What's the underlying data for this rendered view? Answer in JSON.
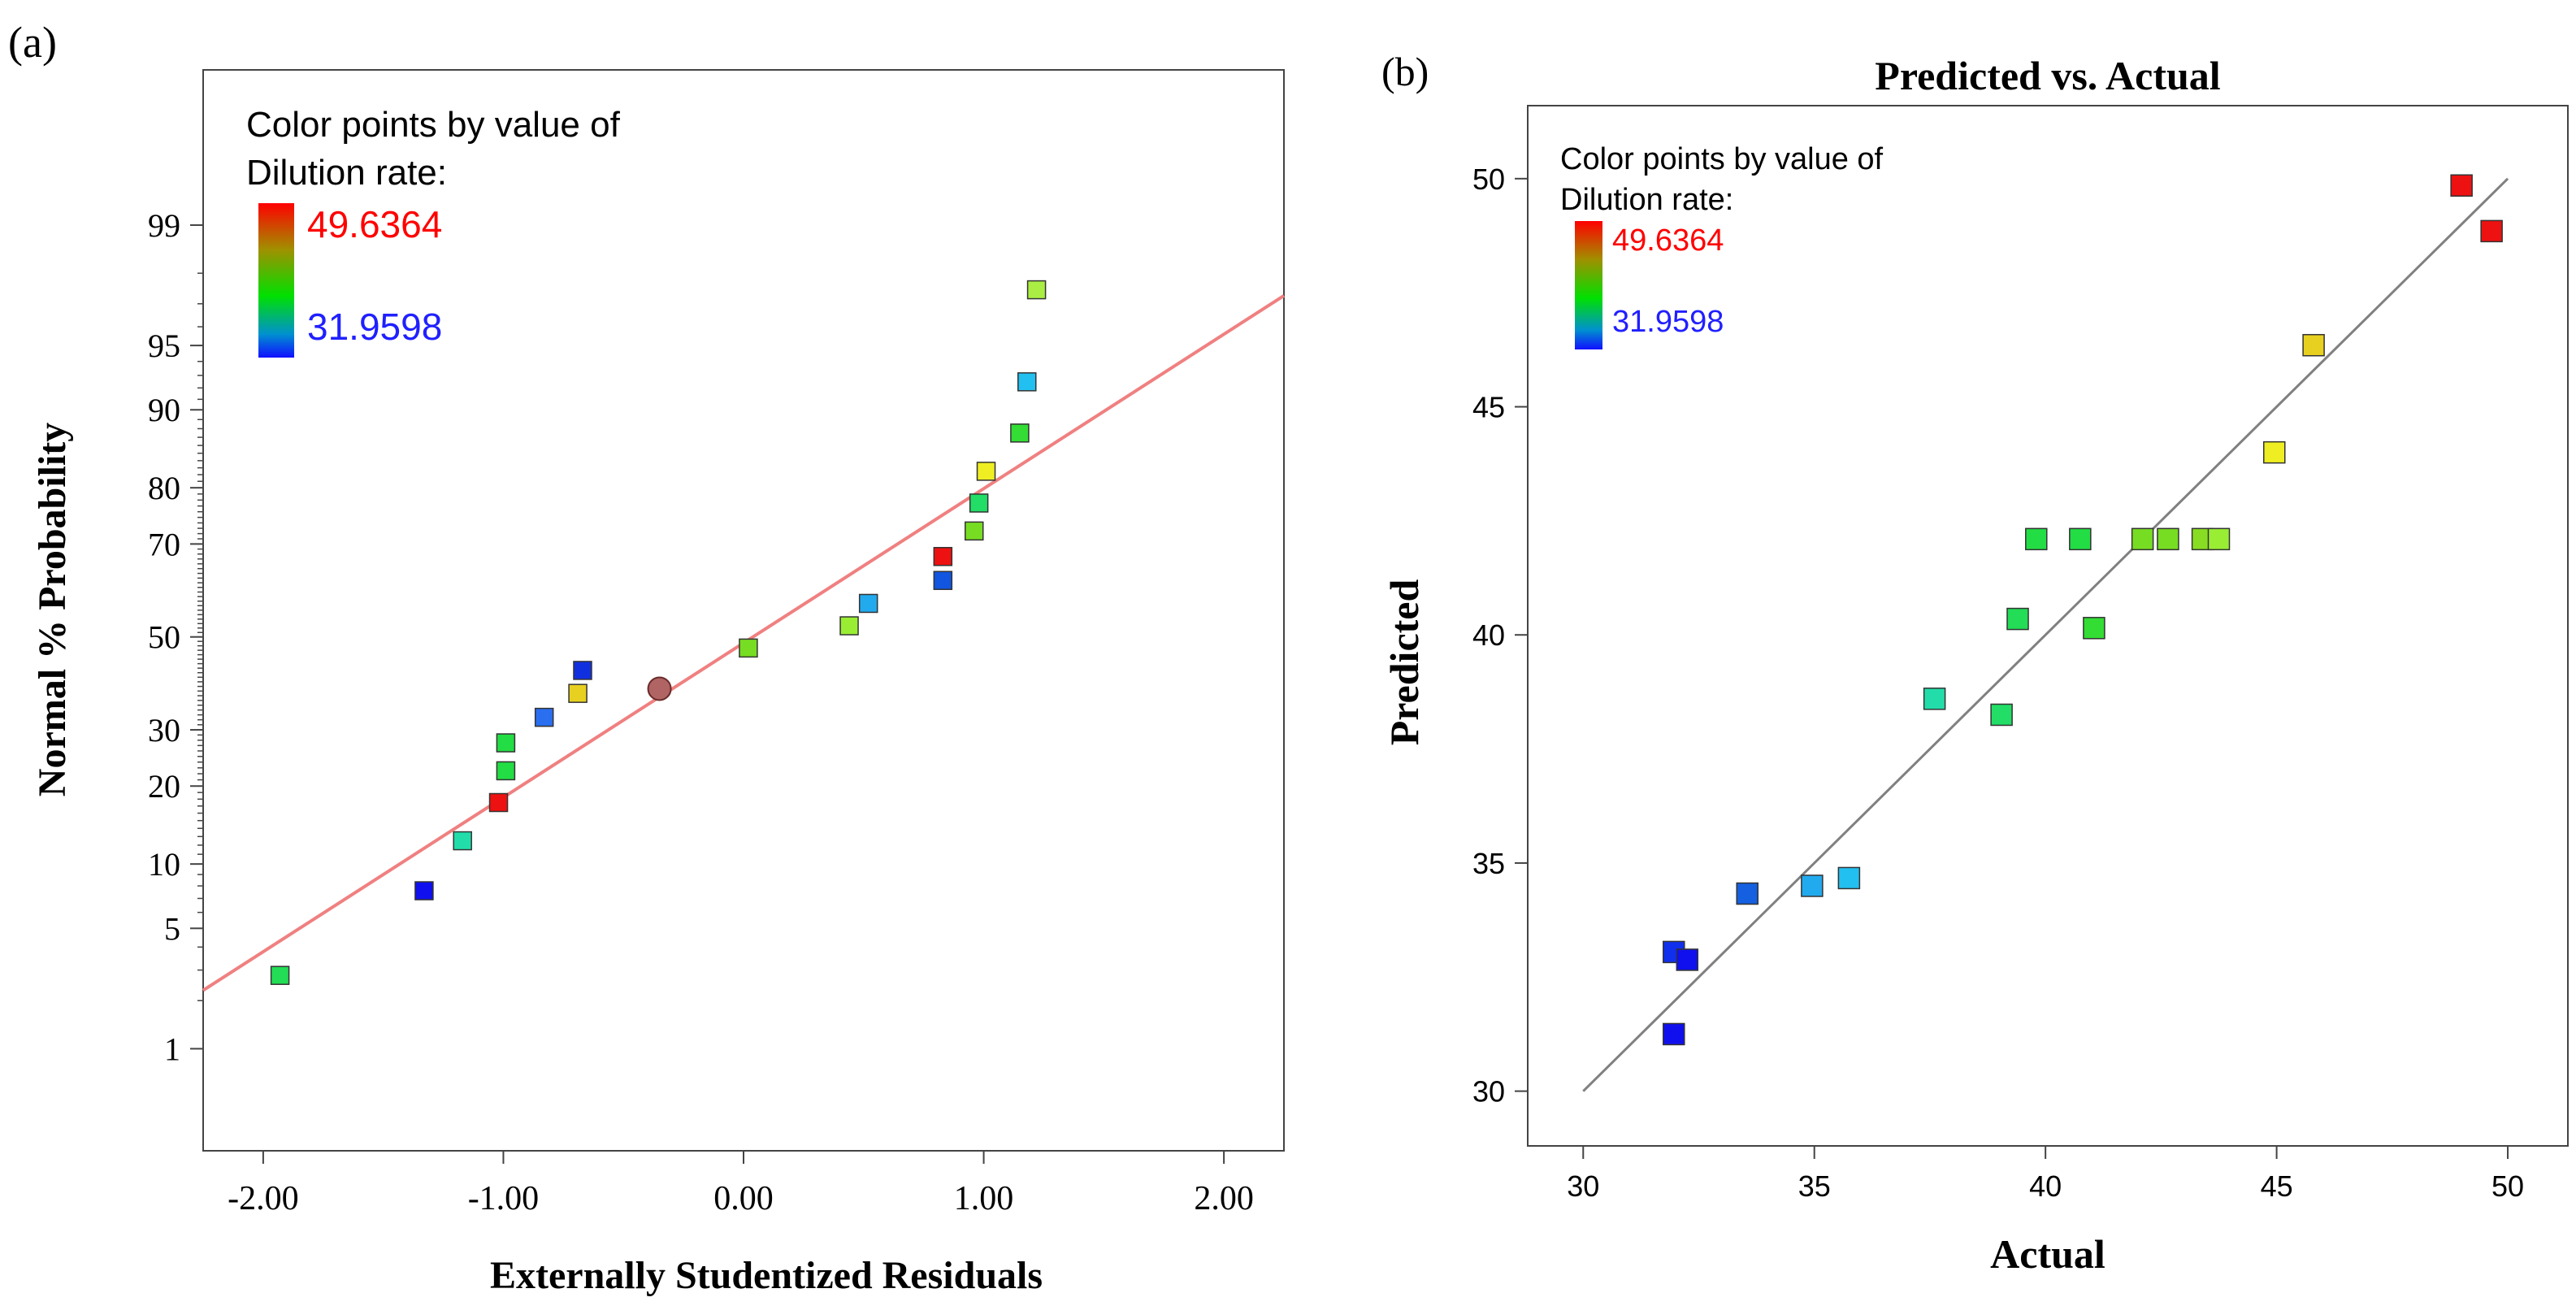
{
  "chart_data": [
    {
      "panel_label": "(a)",
      "type": "scatter",
      "title": "",
      "xlabel": "Externally Studentized Residuals",
      "ylabel": "Normal % Probability",
      "xlim": [
        -2.25,
        2.25
      ],
      "ylim_z": [
        -2.9,
        3.2
      ],
      "y_scale": "normal-probability",
      "xticks": [
        -2.0,
        -1.0,
        0.0,
        1.0,
        2.0
      ],
      "xtick_labels": [
        "-2.00",
        "-1.00",
        "0.00",
        "1.00",
        "2.00"
      ],
      "yticks": [
        1,
        5,
        10,
        20,
        30,
        50,
        70,
        80,
        90,
        95,
        99
      ],
      "ytick_labels": [
        "1",
        "5",
        "10",
        "20",
        "30",
        "50",
        "70",
        "80",
        "90",
        "95",
        "99"
      ],
      "legend": {
        "title_line1": "Color points by value of",
        "title_line2": "Dilution rate:",
        "max_label": "49.6364",
        "min_label": "31.9598",
        "max_color": "#ff0000",
        "min_color": "#2020ff"
      },
      "reference_line": {
        "color": "#f08080",
        "x": [
          -2.25,
          2.25
        ],
        "p": [
          2.3,
          97.3
        ]
      },
      "highlight_point": {
        "x": -0.35,
        "p": 38.5,
        "color": "#b06464"
      },
      "points": [
        {
          "x": -1.93,
          "p": 2.8,
          "color": "#22dd55"
        },
        {
          "x": -1.33,
          "p": 7.6,
          "color": "#1010ee"
        },
        {
          "x": -1.17,
          "p": 12.5,
          "color": "#22ddaa"
        },
        {
          "x": -1.02,
          "p": 17.5,
          "color": "#ee1111"
        },
        {
          "x": -0.99,
          "p": 22.5,
          "color": "#22dd44"
        },
        {
          "x": -0.99,
          "p": 27.5,
          "color": "#22dd44"
        },
        {
          "x": -0.83,
          "p": 32.5,
          "color": "#2a6ff0"
        },
        {
          "x": -0.69,
          "p": 37.5,
          "color": "#e8d020"
        },
        {
          "x": -0.67,
          "p": 42.5,
          "color": "#1030e0"
        },
        {
          "x": 0.02,
          "p": 47.5,
          "color": "#77dd22"
        },
        {
          "x": 0.44,
          "p": 52.5,
          "color": "#99ee33"
        },
        {
          "x": 0.52,
          "p": 57.5,
          "color": "#22aaee"
        },
        {
          "x": 0.83,
          "p": 62.5,
          "color": "#1155e0"
        },
        {
          "x": 0.83,
          "p": 67.5,
          "color": "#ee1111"
        },
        {
          "x": 0.96,
          "p": 72.5,
          "color": "#77dd22"
        },
        {
          "x": 0.98,
          "p": 77.5,
          "color": "#22dd66"
        },
        {
          "x": 1.01,
          "p": 82.5,
          "color": "#eeee22"
        },
        {
          "x": 1.15,
          "p": 87.5,
          "color": "#33dd33"
        },
        {
          "x": 1.18,
          "p": 92.5,
          "color": "#22c0f0"
        },
        {
          "x": 1.22,
          "p": 97.5,
          "color": "#aaee44"
        }
      ]
    },
    {
      "panel_label": "(b)",
      "type": "scatter",
      "title": "Predicted vs. Actual",
      "xlabel": "Actual",
      "ylabel": "Predicted",
      "xlim": [
        28.8,
        51.3
      ],
      "ylim": [
        28.8,
        51.6
      ],
      "xticks": [
        30,
        35,
        40,
        45,
        50
      ],
      "xtick_labels": [
        "30",
        "35",
        "40",
        "45",
        "50"
      ],
      "yticks": [
        30,
        35,
        40,
        45,
        50
      ],
      "ytick_labels": [
        "30",
        "35",
        "40",
        "45",
        "50"
      ],
      "legend": {
        "title_line1": "Color points by value of",
        "title_line2": "Dilution rate:",
        "max_label": "49.6364",
        "min_label": "31.9598",
        "max_color": "#ff0000",
        "min_color": "#2020ff"
      },
      "reference_line": {
        "color": "#808080",
        "x": [
          30,
          50
        ],
        "y": [
          30,
          50
        ]
      },
      "points": [
        {
          "x": 31.96,
          "y": 31.25,
          "color": "#1010ee"
        },
        {
          "x": 31.96,
          "y": 33.05,
          "color": "#1030ee"
        },
        {
          "x": 32.25,
          "y": 32.88,
          "color": "#1010ee"
        },
        {
          "x": 33.55,
          "y": 34.33,
          "color": "#1560e0"
        },
        {
          "x": 34.95,
          "y": 34.5,
          "color": "#22aaee"
        },
        {
          "x": 35.75,
          "y": 34.67,
          "color": "#22c0f0"
        },
        {
          "x": 37.6,
          "y": 38.6,
          "color": "#22ddaa"
        },
        {
          "x": 39.05,
          "y": 38.25,
          "color": "#22dd66"
        },
        {
          "x": 39.4,
          "y": 40.35,
          "color": "#22dd55"
        },
        {
          "x": 39.8,
          "y": 42.1,
          "color": "#22dd44"
        },
        {
          "x": 40.75,
          "y": 42.1,
          "color": "#22dd44"
        },
        {
          "x": 41.05,
          "y": 40.15,
          "color": "#33dd33"
        },
        {
          "x": 42.1,
          "y": 42.1,
          "color": "#77dd22"
        },
        {
          "x": 42.65,
          "y": 42.1,
          "color": "#77dd22"
        },
        {
          "x": 43.4,
          "y": 42.1,
          "color": "#88dd22"
        },
        {
          "x": 43.75,
          "y": 42.1,
          "color": "#99ee33"
        },
        {
          "x": 44.95,
          "y": 44.0,
          "color": "#eeee22"
        },
        {
          "x": 45.8,
          "y": 46.35,
          "color": "#e8d020"
        },
        {
          "x": 49.0,
          "y": 49.85,
          "color": "#ee1111"
        },
        {
          "x": 49.65,
          "y": 48.85,
          "color": "#ee1111"
        }
      ]
    }
  ]
}
